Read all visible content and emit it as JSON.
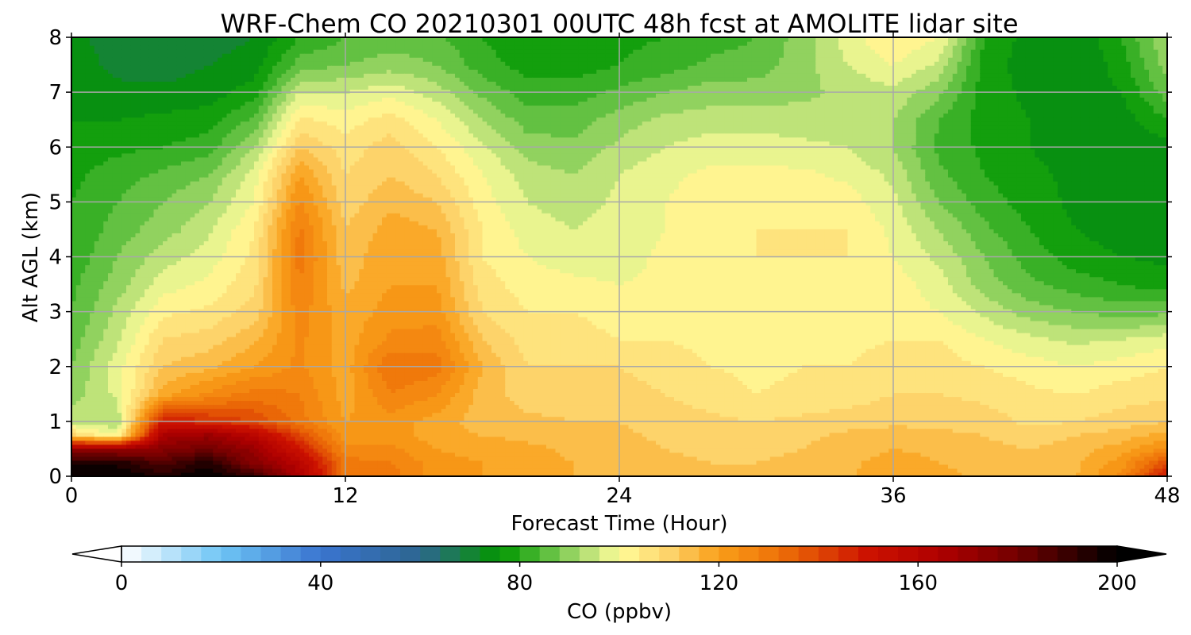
{
  "chart_data": {
    "type": "heatmap",
    "title": "WRF-Chem CO  20210301 00UTC 48h fcst at AMOLITE lidar site",
    "xlabel": "Forecast Time (Hour)",
    "ylabel": "Alt AGL (km)",
    "xlim": [
      0,
      48
    ],
    "ylim": [
      0,
      8
    ],
    "x_ticks": [
      "0",
      "12",
      "24",
      "36",
      "48"
    ],
    "y_ticks": [
      "0",
      "1",
      "2",
      "3",
      "4",
      "5",
      "6",
      "7",
      "8"
    ],
    "grid": true,
    "x_hours": [
      0,
      2,
      4,
      6,
      8,
      10,
      12,
      14,
      16,
      18,
      20,
      22,
      24,
      26,
      28,
      30,
      32,
      34,
      36,
      38,
      40,
      42,
      44,
      46,
      48
    ],
    "z_km": [
      0,
      0.25,
      0.5,
      0.75,
      1,
      1.5,
      2,
      2.5,
      3,
      3.5,
      4,
      4.5,
      5,
      5.5,
      6,
      6.5,
      7,
      7.5,
      8
    ],
    "co_ppbv": [
      [
        200,
        200,
        195,
        200,
        190,
        165,
        130,
        130,
        122,
        120,
        118,
        116,
        115,
        113,
        112,
        112,
        113,
        115,
        120,
        118,
        114,
        113,
        116,
        125,
        150
      ],
      [
        195,
        195,
        185,
        195,
        175,
        160,
        130,
        128,
        122,
        120,
        118,
        116,
        115,
        113,
        112,
        112,
        113,
        115,
        118,
        116,
        114,
        113,
        115,
        122,
        140
      ],
      [
        170,
        170,
        175,
        180,
        170,
        150,
        125,
        125,
        120,
        118,
        117,
        115,
        114,
        112,
        111,
        111,
        112,
        114,
        116,
        115,
        113,
        112,
        114,
        118,
        125
      ],
      [
        110,
        100,
        165,
        170,
        160,
        140,
        122,
        122,
        118,
        116,
        115,
        114,
        113,
        111,
        110,
        110,
        111,
        113,
        114,
        113,
        112,
        110,
        112,
        114,
        118
      ],
      [
        95,
        92,
        150,
        145,
        140,
        130,
        120,
        122,
        118,
        114,
        113,
        112,
        112,
        110,
        109,
        108,
        109,
        110,
        111,
        111,
        110,
        107,
        108,
        110,
        112
      ],
      [
        90,
        97,
        118,
        125,
        130,
        128,
        118,
        128,
        124,
        114,
        110,
        110,
        110,
        108,
        106,
        104,
        105,
        106,
        108,
        108,
        107,
        105,
        104,
        106,
        107
      ],
      [
        88,
        98,
        112,
        115,
        120,
        125,
        118,
        132,
        130,
        116,
        108,
        108,
        108,
        106,
        104,
        103,
        104,
        104,
        106,
        106,
        104,
        102,
        100,
        102,
        104
      ],
      [
        86,
        95,
        108,
        110,
        115,
        125,
        118,
        125,
        126,
        112,
        106,
        106,
        104,
        104,
        103,
        103,
        104,
        103,
        104,
        104,
        100,
        97,
        95,
        96,
        98
      ],
      [
        84,
        93,
        103,
        105,
        110,
        126,
        117,
        122,
        122,
        108,
        104,
        104,
        102,
        102,
        100,
        101,
        102,
        103,
        102,
        100,
        95,
        90,
        88,
        86,
        87
      ],
      [
        83,
        90,
        98,
        101,
        107,
        128,
        115,
        120,
        120,
        106,
        102,
        101,
        100,
        101,
        101,
        102,
        103,
        104,
        102,
        98,
        90,
        85,
        82,
        80,
        78
      ],
      [
        81,
        88,
        94,
        98,
        105,
        130,
        113,
        120,
        118,
        104,
        100,
        98,
        98,
        101,
        103,
        104,
        104,
        104,
        100,
        95,
        88,
        82,
        78,
        76,
        75
      ],
      [
        80,
        86,
        90,
        95,
        104,
        129,
        112,
        118,
        116,
        104,
        98,
        96,
        98,
        100,
        103,
        104,
        104,
        104,
        99,
        92,
        85,
        80,
        76,
        74,
        74
      ],
      [
        80,
        84,
        88,
        92,
        100,
        125,
        110,
        115,
        112,
        102,
        96,
        94,
        97,
        100,
        102,
        103,
        103,
        102,
        97,
        88,
        82,
        78,
        75,
        73,
        74
      ],
      [
        79,
        82,
        85,
        88,
        98,
        120,
        108,
        112,
        108,
        100,
        94,
        92,
        96,
        99,
        101,
        101,
        101,
        99,
        95,
        85,
        80,
        77,
        75,
        73,
        73
      ],
      [
        78,
        79,
        80,
        82,
        92,
        112,
        106,
        110,
        104,
        97,
        90,
        89,
        93,
        96,
        98,
        98,
        97,
        96,
        92,
        83,
        79,
        76,
        74,
        73,
        74
      ],
      [
        76,
        76,
        77,
        78,
        85,
        105,
        102,
        106,
        100,
        92,
        86,
        86,
        90,
        93,
        94,
        94,
        94,
        93,
        92,
        84,
        78,
        76,
        74,
        74,
        80
      ],
      [
        75,
        73,
        73,
        74,
        78,
        96,
        96,
        99,
        94,
        87,
        82,
        82,
        85,
        88,
        90,
        90,
        91,
        93,
        95,
        89,
        78,
        75,
        73,
        76,
        86
      ],
      [
        74,
        71,
        70,
        72,
        74,
        86,
        88,
        90,
        88,
        82,
        78,
        78,
        80,
        82,
        85,
        86,
        90,
        96,
        100,
        95,
        78,
        74,
        72,
        78,
        90
      ],
      [
        73,
        70,
        68,
        70,
        72,
        80,
        84,
        86,
        85,
        80,
        76,
        76,
        79,
        80,
        82,
        84,
        90,
        98,
        104,
        100,
        80,
        74,
        72,
        80,
        92
      ]
    ],
    "colorbar": {
      "label": "CO  (ppbv)",
      "ticks": [
        "0",
        "40",
        "80",
        "120",
        "160",
        "200"
      ],
      "range": [
        0,
        200
      ],
      "step": 4,
      "extend": "both",
      "stops": [
        {
          "v": 0,
          "c": "#ffffff"
        },
        {
          "v": 20,
          "c": "#6ec5f5"
        },
        {
          "v": 40,
          "c": "#3a74cf"
        },
        {
          "v": 60,
          "c": "#2d6690"
        },
        {
          "v": 72,
          "c": "#0f8a22"
        },
        {
          "v": 76,
          "c": "#009600"
        },
        {
          "v": 84,
          "c": "#4cb833"
        },
        {
          "v": 92,
          "c": "#a8db6e"
        },
        {
          "v": 100,
          "c": "#fffc9a"
        },
        {
          "v": 110,
          "c": "#fdd36a"
        },
        {
          "v": 120,
          "c": "#f99e19"
        },
        {
          "v": 132,
          "c": "#ee7208"
        },
        {
          "v": 150,
          "c": "#cc1200"
        },
        {
          "v": 164,
          "c": "#b00000"
        },
        {
          "v": 180,
          "c": "#720000"
        },
        {
          "v": 200,
          "c": "#000000"
        }
      ]
    }
  }
}
